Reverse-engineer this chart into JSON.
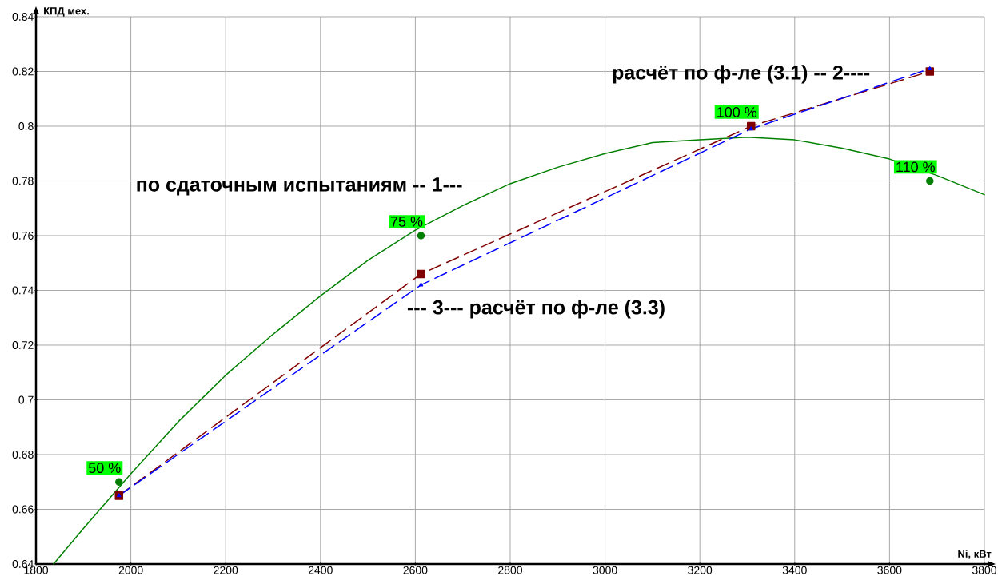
{
  "chart_data": {
    "type": "line",
    "xlabel": "Ni, кВт",
    "ylabel": "КПД мех.",
    "xlim": [
      1800,
      3800
    ],
    "ylim": [
      0.64,
      0.84
    ],
    "xticks": [
      1800,
      2000,
      2200,
      2400,
      2600,
      2800,
      3000,
      3200,
      3400,
      3600,
      3800
    ],
    "yticks": [
      0.64,
      0.66,
      0.68,
      0.7,
      0.72,
      0.74,
      0.76,
      0.78,
      0.8,
      0.82,
      0.84
    ],
    "grid": true,
    "series": [
      {
        "type": "line",
        "color": "#008000",
        "marker": "none",
        "line_style": "solid",
        "x": [
          1837,
          1900,
          2000,
          2100,
          2200,
          2300,
          2400,
          2500,
          2600,
          2700,
          2800,
          2900,
          3000,
          3100,
          3200,
          3300,
          3400,
          3500,
          3600,
          3700,
          3800
        ],
        "values": [
          0.64,
          0.653,
          0.673,
          0.692,
          0.709,
          0.724,
          0.738,
          0.751,
          0.762,
          0.771,
          0.779,
          0.785,
          0.79,
          0.794,
          0.795,
          0.796,
          0.795,
          0.792,
          0.788,
          0.782,
          0.775
        ]
      },
      {
        "type": "scatter",
        "color": "#008000",
        "marker": "circle",
        "x": [
          1975,
          2612,
          3685
        ],
        "values": [
          0.67,
          0.76,
          0.78
        ]
      },
      {
        "color": "#800000",
        "marker": "square",
        "line_style": "dashed",
        "x": [
          1975,
          2612,
          3308,
          3685
        ],
        "values": [
          0.665,
          0.746,
          0.8,
          0.82
        ]
      },
      {
        "color": "#0000ff",
        "marker": "triangle",
        "line_style": "dashed",
        "x": [
          1975,
          2612,
          3308,
          3685
        ],
        "values": [
          0.665,
          0.742,
          0.799,
          0.821
        ]
      }
    ],
    "annotations": [
      {
        "text": "50 %",
        "x": 1975,
        "y": 0.67
      },
      {
        "text": "75 %",
        "x": 2612,
        "y": 0.76
      },
      {
        "text": "100 %",
        "x": 3308,
        "y": 0.8
      },
      {
        "text": "110 %",
        "x": 3685,
        "y": 0.78
      },
      "по сдаточным испытаниям -- 1---",
      "расчёт по ф-ле (3.1) -- 2----",
      "--- 3--- расчёт по ф-ле (3.3)"
    ]
  }
}
